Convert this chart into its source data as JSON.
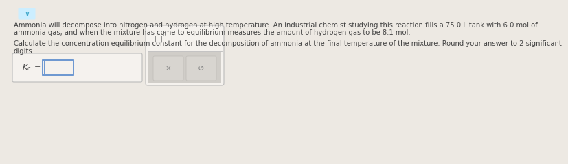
{
  "bg_color": "#ede9e3",
  "text_color": "#444444",
  "paragraph1_line1": "Ammonia will decompose into nitrogen and hydrogen at high temperature. An industrial chemist studying this reaction fills a 75.0 L tank with 6.0 mol of",
  "paragraph1_line2": "ammonia gas, and when the mixture has come to equilibrium measures the amount of hydrogen gas to be 8.1 mol.",
  "paragraph2_line1": "Calculate the concentration equilibrium constant for the decomposition of ammonia at the final temperature of the mixture. Round your answer to 2 significant",
  "paragraph2_line2": "digits.",
  "input_box_facecolor": "#f5f2ee",
  "input_box_edgecolor": "#bbbbbb",
  "right_panel_facecolor": "#e0ddd8",
  "right_panel_edgecolor": "#bbbbbb",
  "button_area_facecolor": "#d0cdc8",
  "button_facecolor": "#d8d5d0",
  "button_edgecolor": "#c0bdb8",
  "x_symbol": "×",
  "refresh_symbol": "↺",
  "cursor_color": "#5588cc",
  "chevron_color": "#44aacc",
  "chevron_bg": "#cceeff",
  "font_size_body": 7.2,
  "font_size_kc": 8.0,
  "font_size_btn": 7.5
}
